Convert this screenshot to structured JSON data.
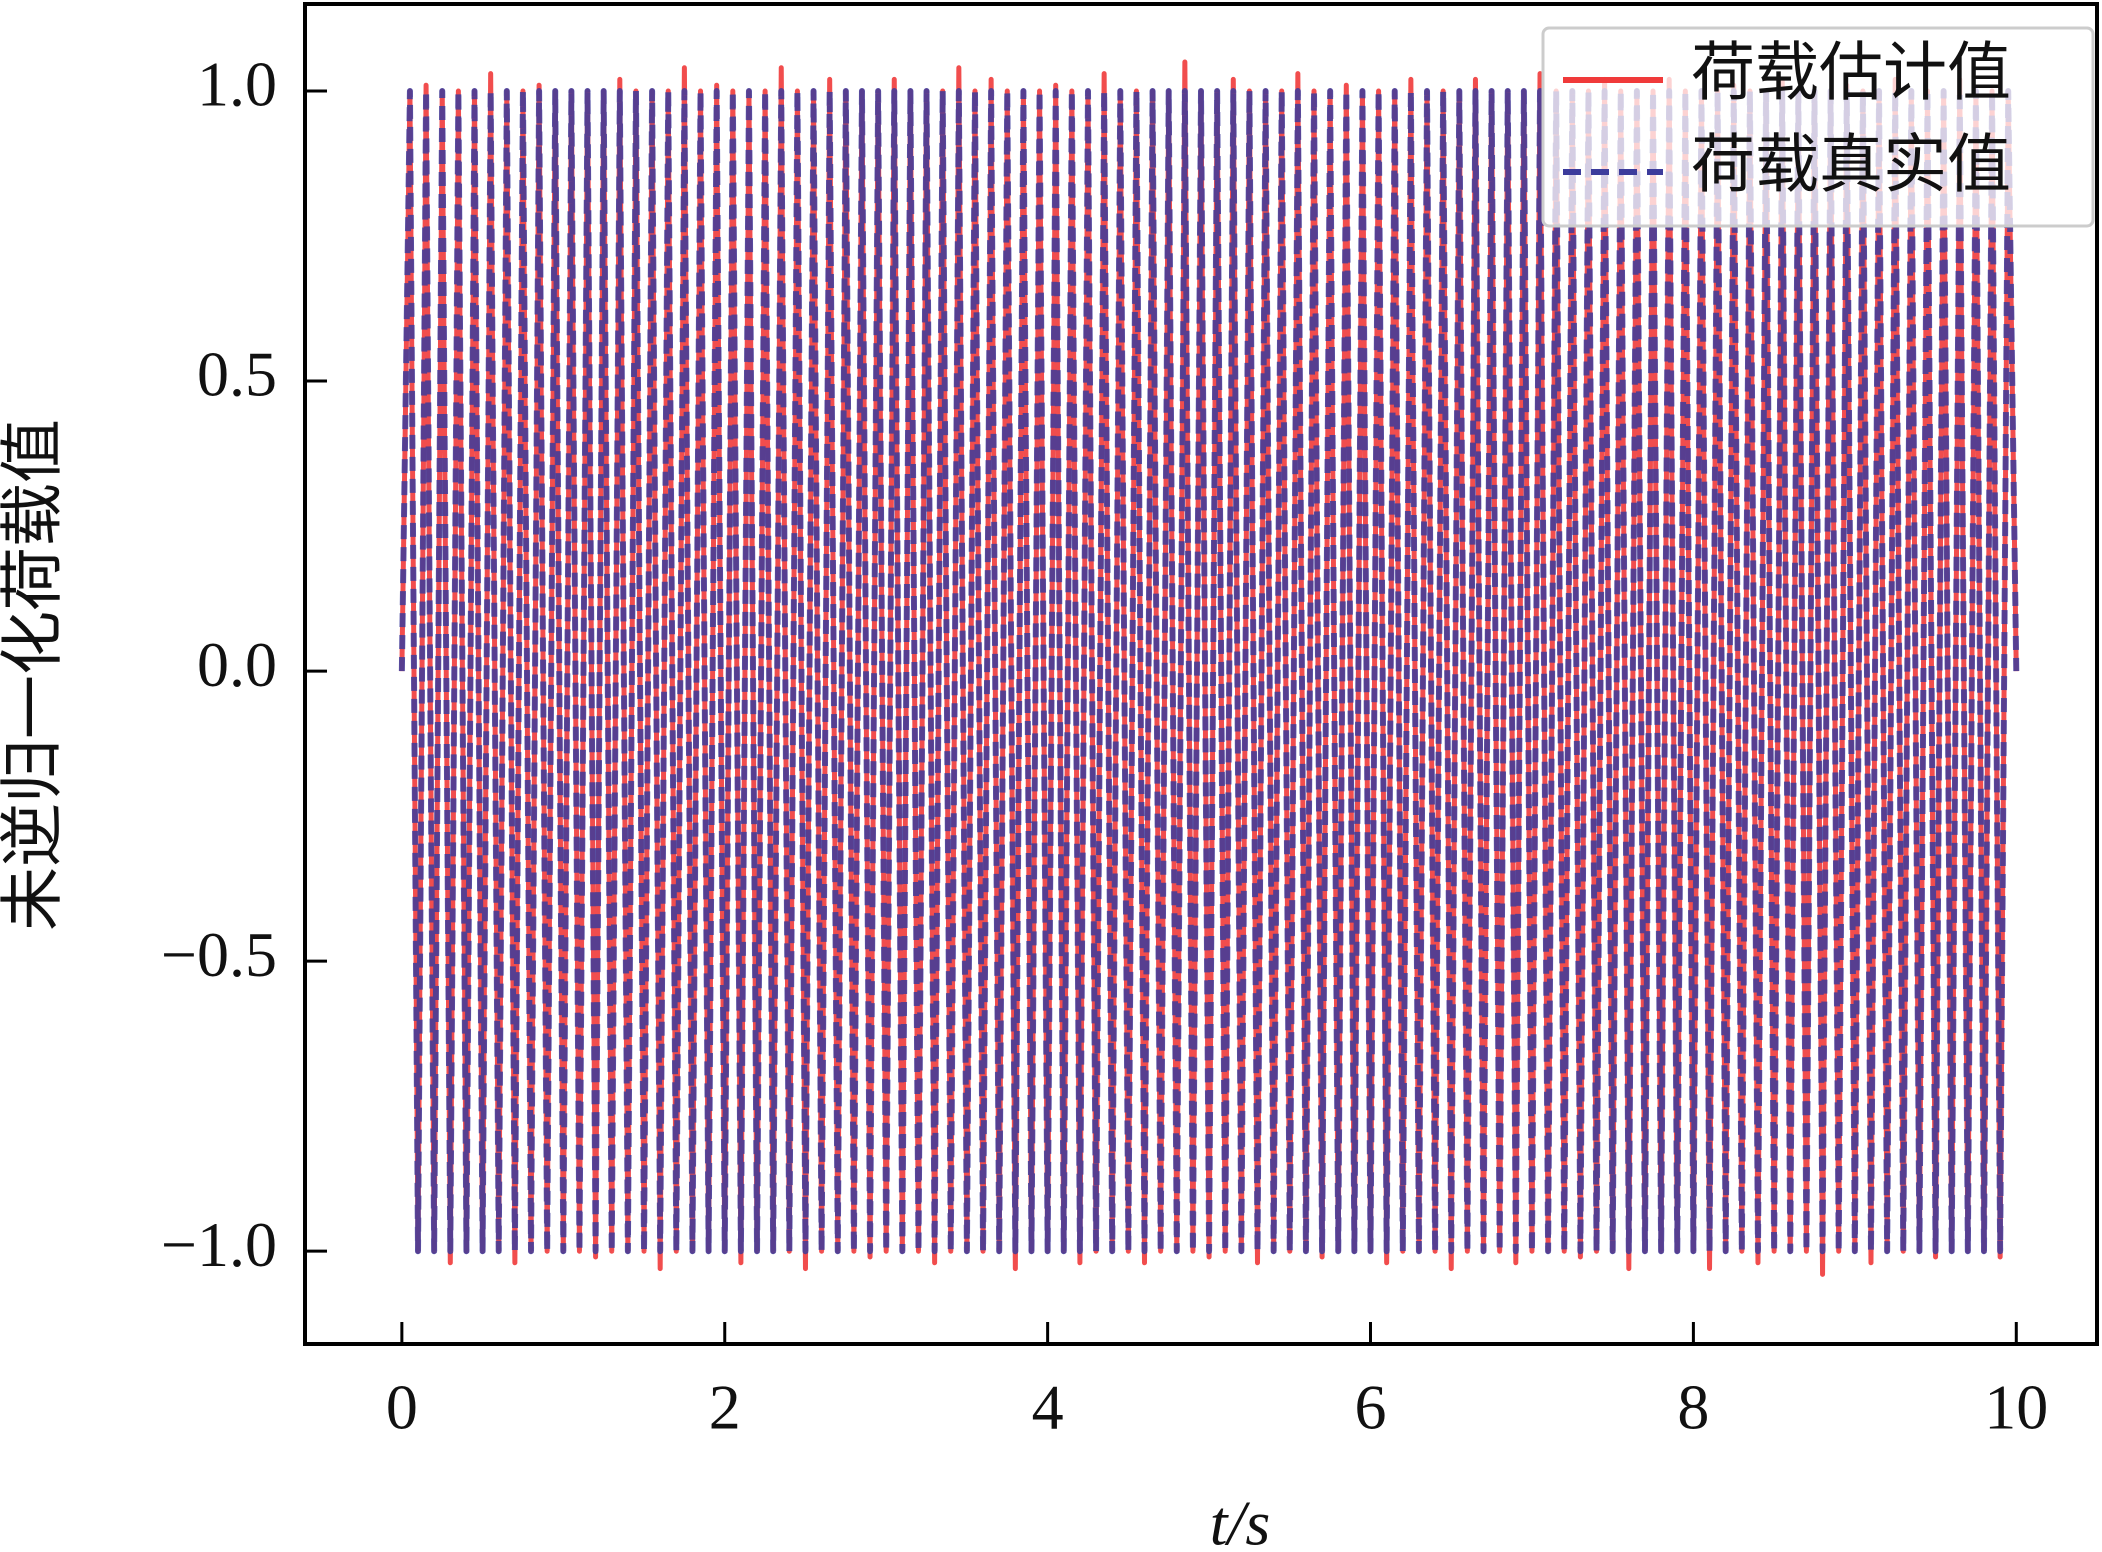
{
  "chart_data": {
    "type": "line",
    "xlabel": "t/s",
    "ylabel": "未逆归一化荷载值",
    "xlim": [
      -0.6,
      10.5
    ],
    "ylim": [
      -1.16,
      1.15
    ],
    "xticks": [
      0,
      2,
      4,
      6,
      8,
      10
    ],
    "yticks": [
      {
        "value": -1,
        "label": "−1.0"
      },
      {
        "value": -0.5,
        "label": "−0.5"
      },
      {
        "value": 0,
        "label": "0.0"
      },
      {
        "value": 0.5,
        "label": "0.5"
      },
      {
        "value": 1,
        "label": "1.0"
      }
    ],
    "legend": "upper right",
    "x": [
      0,
      0.05,
      0.1,
      0.15,
      0.2,
      0.25,
      0.3,
      0.35,
      0.4,
      0.45,
      0.5,
      0.55,
      0.6,
      0.65,
      0.7,
      0.75,
      0.8,
      0.85,
      0.9,
      0.95,
      1,
      1.05,
      1.1,
      1.15,
      1.2,
      1.25,
      1.3,
      1.35,
      1.4,
      1.45,
      1.5,
      1.55,
      1.6,
      1.65,
      1.7,
      1.75,
      1.8,
      1.85,
      1.9,
      1.95,
      2,
      2.05,
      2.1,
      2.15,
      2.2,
      2.25,
      2.3,
      2.35,
      2.4,
      2.45,
      2.5,
      2.55,
      2.6,
      2.65,
      2.7,
      2.75,
      2.8,
      2.85,
      2.9,
      2.95,
      3,
      3.05,
      3.1,
      3.15,
      3.2,
      3.25,
      3.3,
      3.35,
      3.4,
      3.45,
      3.5,
      3.55,
      3.6,
      3.65,
      3.7,
      3.75,
      3.8,
      3.85,
      3.9,
      3.95,
      4,
      4.05,
      4.1,
      4.15,
      4.2,
      4.25,
      4.3,
      4.35,
      4.4,
      4.45,
      4.5,
      4.55,
      4.6,
      4.65,
      4.7,
      4.75,
      4.8,
      4.85,
      4.9,
      4.95,
      5,
      5.05,
      5.1,
      5.15,
      5.2,
      5.25,
      5.3,
      5.35,
      5.4,
      5.45,
      5.5,
      5.55,
      5.6,
      5.65,
      5.7,
      5.75,
      5.8,
      5.85,
      5.9,
      5.95,
      6,
      6.05,
      6.1,
      6.15,
      6.2,
      6.25,
      6.3,
      6.35,
      6.4,
      6.45,
      6.5,
      6.55,
      6.6,
      6.65,
      6.7,
      6.75,
      6.8,
      6.85,
      6.9,
      6.95,
      7,
      7.05,
      7.1,
      7.15,
      7.2,
      7.25,
      7.3,
      7.35,
      7.4,
      7.45,
      7.5,
      7.55,
      7.6,
      7.65,
      7.7,
      7.75,
      7.8,
      7.85,
      7.9,
      7.95,
      8,
      8.05,
      8.1,
      8.15,
      8.2,
      8.25,
      8.3,
      8.35,
      8.4,
      8.45,
      8.5,
      8.55,
      8.6,
      8.65,
      8.7,
      8.75,
      8.8,
      8.85,
      8.9,
      8.95,
      9,
      9.05,
      9.1,
      9.15,
      9.2,
      9.25,
      9.3,
      9.35,
      9.4,
      9.45,
      9.5,
      9.55,
      9.6,
      9.65,
      9.7,
      9.75,
      9.8,
      9.85,
      9.9,
      9.95,
      10
    ],
    "series": [
      {
        "name": "荷载估计值",
        "color": "#f03a3a",
        "dash": false,
        "values": [
          0,
          1,
          -1,
          1.01,
          -1,
          1,
          -1.02,
          1,
          -1,
          1,
          -1,
          1.03,
          -1,
          1,
          -1.02,
          1,
          -1,
          1.01,
          -1,
          1,
          -1,
          1,
          -1,
          1,
          -1.01,
          1,
          -1,
          1.02,
          -1,
          1,
          -1,
          1,
          -1.03,
          1,
          -1,
          1.04,
          -1,
          1,
          -1,
          1.01,
          -1,
          1,
          -1.02,
          1,
          -1,
          1,
          -1,
          1.04,
          -1,
          1,
          -1.03,
          1,
          -1,
          1.02,
          -1,
          1,
          -1,
          1,
          -1.01,
          1,
          -1,
          1.02,
          -1,
          1,
          -1,
          1,
          -1.02,
          1,
          -1,
          1.04,
          -1,
          1,
          -1,
          1.02,
          -1,
          1,
          -1.03,
          1,
          -1,
          1,
          -1,
          1.01,
          -1,
          1,
          -1.02,
          1,
          -1,
          1.03,
          -1,
          1,
          -1,
          1,
          -1.02,
          1,
          -1,
          1,
          -1,
          1.05,
          -1,
          1,
          -1.01,
          1,
          -1,
          1.02,
          -1,
          1,
          -1.02,
          1,
          -1,
          1,
          -1,
          1.03,
          -1,
          1,
          -1.01,
          1,
          -1,
          1.01,
          -1,
          1,
          -1,
          1,
          -1.02,
          1,
          -1,
          1.02,
          -1,
          1,
          -1,
          1,
          -1.03,
          1,
          -1,
          1.02,
          -1,
          1,
          -1,
          1,
          -1.02,
          1,
          -1,
          1.03,
          -1,
          1,
          -1,
          1,
          -1.01,
          1,
          -1,
          1.02,
          -1,
          1,
          -1.03,
          1,
          -1,
          1,
          -1,
          1.02,
          -1,
          1,
          -1,
          1,
          -1.03,
          1,
          -1,
          1.01,
          -1,
          1,
          -1.02,
          1,
          -1,
          1.02,
          -1,
          1,
          -1,
          1,
          -1.04,
          1,
          -1,
          1.01,
          -1,
          1,
          -1.02,
          1,
          -1,
          1.02,
          -1,
          1,
          -1,
          1,
          -1.01,
          1,
          -1,
          1.02,
          -1,
          1,
          -1,
          1,
          -1.01,
          1,
          0
        ]
      },
      {
        "name": "荷载真实值",
        "color": "#3c3c9c",
        "dash": true,
        "values": [
          0,
          1,
          -1,
          1,
          -1,
          1,
          -1,
          1,
          -1,
          1,
          -1,
          1,
          -1,
          1,
          -1,
          1,
          -1,
          1,
          -1,
          1,
          -1,
          1,
          -1,
          1,
          -1,
          1,
          -1,
          1,
          -1,
          1,
          -1,
          1,
          -1,
          1,
          -1,
          1,
          -1,
          1,
          -1,
          1,
          -1,
          1,
          -1,
          1,
          -1,
          1,
          -1,
          1,
          -1,
          1,
          -1,
          1,
          -1,
          1,
          -1,
          1,
          -1,
          1,
          -1,
          1,
          -1,
          1,
          -1,
          1,
          -1,
          1,
          -1,
          1,
          -1,
          1,
          -1,
          1,
          -1,
          1,
          -1,
          1,
          -1,
          1,
          -1,
          1,
          -1,
          1,
          -1,
          1,
          -1,
          1,
          -1,
          1,
          -1,
          1,
          -1,
          1,
          -1,
          1,
          -1,
          1,
          -1,
          1,
          -1,
          1,
          -1,
          1,
          -1,
          1,
          -1,
          1,
          -1,
          1,
          -1,
          1,
          -1,
          1,
          -1,
          1,
          -1,
          1,
          -1,
          1,
          -1,
          1,
          -1,
          1,
          -1,
          1,
          -1,
          1,
          -1,
          1,
          -1,
          1,
          -1,
          1,
          -1,
          1,
          -1,
          1,
          -1,
          1,
          -1,
          1,
          -1,
          1,
          -1,
          1,
          -1,
          1,
          -1,
          1,
          -1,
          1,
          -1,
          1,
          -1,
          1,
          -1,
          1,
          -1,
          1,
          -1,
          1,
          -1,
          1,
          -1,
          1,
          -1,
          1,
          -1,
          1,
          -1,
          1,
          -1,
          1,
          -1,
          1,
          -1,
          1,
          -1,
          1,
          -1,
          1,
          -1,
          1,
          -1,
          1,
          -1,
          1,
          -1,
          1,
          -1,
          1,
          -1,
          1,
          -1,
          1,
          -1,
          1,
          -1,
          1,
          -1,
          1,
          0
        ]
      }
    ]
  }
}
